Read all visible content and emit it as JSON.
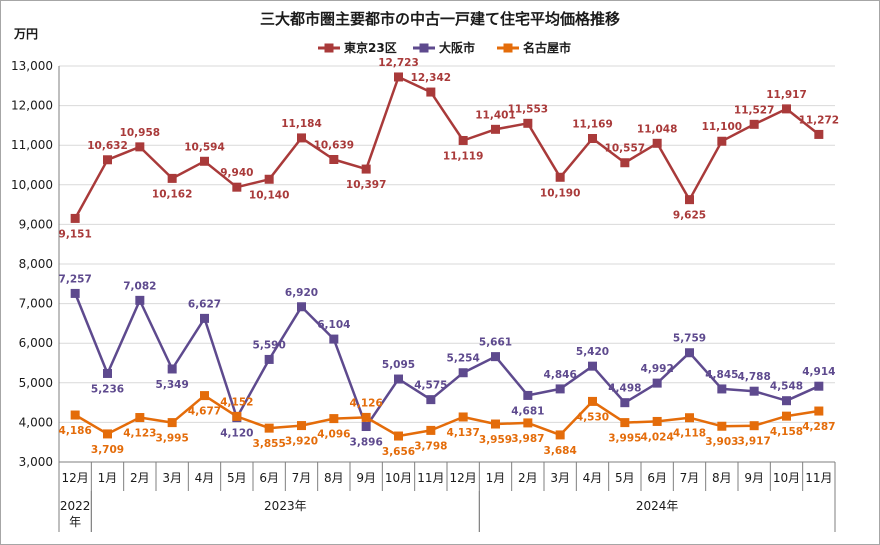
{
  "chart_data": {
    "type": "line",
    "title": "三大都市圏主要都市の中古一戸建て住宅平均価格推移",
    "ylabel": "万円",
    "ylim": [
      3000,
      13000
    ],
    "yticks": [
      "3,000",
      "4,000",
      "5,000",
      "6,000",
      "7,000",
      "8,000",
      "9,000",
      "10,000",
      "11,000",
      "12,000",
      "13,000"
    ],
    "categories": [
      "12月",
      "1月",
      "2月",
      "3月",
      "4月",
      "5月",
      "6月",
      "7月",
      "8月",
      "9月",
      "10月",
      "11月",
      "12月",
      "1月",
      "2月",
      "3月",
      "4月",
      "5月",
      "6月",
      "7月",
      "8月",
      "9月",
      "10月",
      "11月"
    ],
    "years": [
      {
        "label": "2022年",
        "start": 0,
        "end": 0
      },
      {
        "label": "2023年",
        "start": 1,
        "end": 12
      },
      {
        "label": "2024年",
        "start": 13,
        "end": 23
      }
    ],
    "legend_position": "top",
    "series": [
      {
        "name": "東京23区",
        "color": "#a93a3a",
        "values": [
          9151,
          10632,
          10958,
          10162,
          10594,
          9940,
          10140,
          11184,
          10639,
          10397,
          12723,
          12342,
          11119,
          11401,
          11553,
          10190,
          11169,
          10557,
          11048,
          9625,
          11100,
          11527,
          11917,
          11272
        ],
        "labels": [
          "9,151",
          "10,632",
          "10,958",
          "10,162",
          "10,594",
          "9,940",
          "10,140",
          "11,184",
          "10,639",
          "10,397",
          "12,723",
          "12,342",
          "11,119",
          "11,401",
          "11,553",
          "10,190",
          "11,169",
          "10,557",
          "11,048",
          "9,625",
          "11,100",
          "11,527",
          "11,917",
          "11,272"
        ],
        "label_pos": [
          "below",
          "above",
          "above",
          "below",
          "above",
          "above",
          "below",
          "above",
          "above",
          "below",
          "above",
          "above",
          "below",
          "above",
          "above",
          "below",
          "above",
          "above",
          "above",
          "below",
          "above",
          "above",
          "above",
          "above"
        ]
      },
      {
        "name": "大阪市",
        "color": "#5e4a8e",
        "values": [
          7257,
          5236,
          7082,
          5349,
          6627,
          4120,
          5590,
          6920,
          6104,
          3896,
          5095,
          4575,
          5254,
          5661,
          4681,
          4846,
          5420,
          4498,
          4992,
          5759,
          4845,
          4788,
          4548,
          4914
        ],
        "labels": [
          "7,257",
          "5,236",
          "7,082",
          "5,349",
          "6,627",
          "4,120",
          "5,590",
          "6,920",
          "6,104",
          "3,896",
          "5,095",
          "4,575",
          "5,254",
          "5,661",
          "4,681",
          "4,846",
          "5,420",
          "4,498",
          "4,992",
          "5,759",
          "4,845",
          "4,788",
          "4,548",
          "4,914"
        ],
        "label_pos": [
          "above",
          "below",
          "above",
          "below",
          "above",
          "below",
          "above",
          "above",
          "above",
          "below",
          "above",
          "above",
          "above",
          "above",
          "below",
          "above",
          "above",
          "above",
          "above",
          "above",
          "above",
          "above",
          "above",
          "above"
        ]
      },
      {
        "name": "名古屋市",
        "color": "#e46c0a",
        "values": [
          4186,
          3709,
          4123,
          3995,
          4677,
          4152,
          3855,
          3920,
          4096,
          4126,
          3656,
          3798,
          4137,
          3959,
          3987,
          3684,
          4530,
          3995,
          4024,
          4118,
          3903,
          3917,
          4158,
          4287
        ],
        "labels": [
          "4,186",
          "3,709",
          "4,123",
          "3,995",
          "4,677",
          "4,152",
          "3,855",
          "3,920",
          "4,096",
          "4,126",
          "3,656",
          "3,798",
          "4,137",
          "3,959",
          "3,987",
          "3,684",
          "4,530",
          "3,995",
          "4,024",
          "4,118",
          "3,903",
          "3,917",
          "4,158",
          "4,287"
        ],
        "label_pos": [
          "below",
          "below",
          "below",
          "below",
          "below",
          "above",
          "below",
          "below",
          "below",
          "above",
          "below",
          "below",
          "below",
          "below",
          "below",
          "below",
          "below",
          "below",
          "below",
          "below",
          "below",
          "below",
          "below",
          "below"
        ]
      }
    ]
  }
}
